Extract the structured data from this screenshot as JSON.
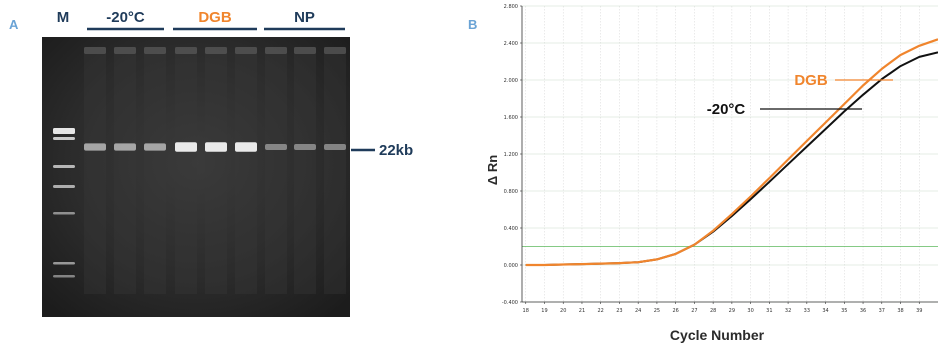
{
  "panel_a": {
    "letter": "A",
    "lanes": {
      "marker": "M",
      "groups": [
        {
          "label": "-20°C",
          "color": "#1f3b5a"
        },
        {
          "label": "DGB",
          "color": "#f0852d"
        },
        {
          "label": "NP",
          "color": "#1f3b5a"
        }
      ]
    },
    "band_label": "22kb",
    "band_intensity": [
      0.55,
      0.55,
      0.55,
      0.9,
      0.9,
      0.9,
      0.35,
      0.35,
      0.35
    ]
  },
  "panel_b": {
    "letter": "B",
    "chart_data": {
      "type": "line",
      "xlabel": "Cycle Number",
      "ylabel": "Δ Rn",
      "xlim": [
        17.8,
        40
      ],
      "ylim": [
        -0.4,
        2.8
      ],
      "x_ticks": [
        "18",
        "19",
        "20",
        "21",
        "22",
        "23",
        "24",
        "25",
        "26",
        "27",
        "28",
        "29",
        "30",
        "31",
        "32",
        "33",
        "34",
        "35",
        "36",
        "37",
        "38",
        "39"
      ],
      "y_ticks": [
        "-0.400",
        "0.000",
        "0.400",
        "0.800",
        "1.200",
        "1.600",
        "2.000",
        "2.400",
        "2.800"
      ],
      "threshold": 0.2,
      "series": [
        {
          "name": "DGB",
          "color": "#f0852d",
          "x": [
            18,
            19,
            20,
            21,
            22,
            23,
            24,
            25,
            26,
            27,
            28,
            29,
            30,
            31,
            32,
            33,
            34,
            35,
            36,
            37,
            38,
            39,
            40
          ],
          "y": [
            0.0,
            0.0,
            0.005,
            0.01,
            0.015,
            0.02,
            0.03,
            0.06,
            0.12,
            0.22,
            0.37,
            0.55,
            0.74,
            0.94,
            1.14,
            1.34,
            1.54,
            1.74,
            1.94,
            2.12,
            2.27,
            2.37,
            2.44
          ]
        },
        {
          "name": "-20°C",
          "color": "#111111",
          "x": [
            18,
            19,
            20,
            21,
            22,
            23,
            24,
            25,
            26,
            27,
            28,
            29,
            30,
            31,
            32,
            33,
            34,
            35,
            36,
            37,
            38,
            39,
            40
          ],
          "y": [
            0.0,
            0.0,
            0.005,
            0.01,
            0.015,
            0.02,
            0.03,
            0.06,
            0.12,
            0.22,
            0.36,
            0.53,
            0.71,
            0.9,
            1.09,
            1.28,
            1.47,
            1.66,
            1.84,
            2.01,
            2.15,
            2.25,
            2.3
          ]
        }
      ],
      "annotations": [
        {
          "text": "DGB",
          "color": "#f0852d"
        },
        {
          "text": "-20°C",
          "color": "#111111"
        }
      ]
    }
  }
}
